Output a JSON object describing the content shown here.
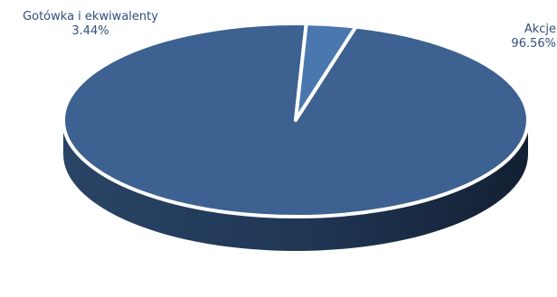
{
  "chart_data": {
    "type": "pie",
    "title": "",
    "slices": [
      {
        "name": "Akcje",
        "value": 96.56,
        "label": "96.56%",
        "color": "#3d6190"
      },
      {
        "name": "Gotówka i ekwiwalenty",
        "value": 3.44,
        "label": "3.44%",
        "color": "#4a77ad"
      }
    ],
    "style": "3d",
    "legend": "none"
  }
}
